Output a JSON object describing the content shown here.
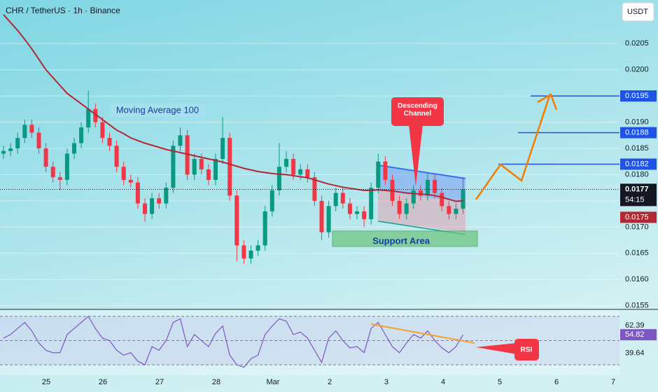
{
  "header": {
    "symbol": "CHR / TetherUS · 1h · Binance",
    "currency": "USDT",
    "countdown": "54:15"
  },
  "chart_data": [
    {
      "type": "candlestick",
      "up_color": "#089981",
      "down_color": "#f23645",
      "open": [
        0.0184,
        0.01845,
        0.0185,
        0.0187,
        0.01895,
        0.0188,
        0.0185,
        0.01815,
        0.01795,
        0.0179,
        0.0184,
        0.0186,
        0.0189,
        0.01925,
        0.019,
        0.0187,
        0.01855,
        0.01815,
        0.0179,
        0.01785,
        0.01745,
        0.01725,
        0.01755,
        0.01745,
        0.01775,
        0.01855,
        0.01875,
        0.018,
        0.0183,
        0.0181,
        0.0179,
        0.0183,
        0.0187,
        0.0176,
        0.01665,
        0.0164,
        0.01655,
        0.01665,
        0.0173,
        0.0177,
        0.01815,
        0.0183,
        0.018,
        0.0181,
        0.01795,
        0.0175,
        0.0169,
        0.0174,
        0.01765,
        0.01745,
        0.01725,
        0.0173,
        0.01715,
        0.01775,
        0.01825,
        0.0179,
        0.0175,
        0.01725,
        0.01745,
        0.0177,
        0.0176,
        0.0179,
        0.01765,
        0.0174,
        0.01725,
        0.01735
      ],
      "high": [
        0.01855,
        0.0186,
        0.0188,
        0.01905,
        0.01905,
        0.0189,
        0.0186,
        0.01825,
        0.01805,
        0.0185,
        0.0187,
        0.019,
        0.0196,
        0.01935,
        0.0191,
        0.0188,
        0.01865,
        0.01825,
        0.018,
        0.01795,
        0.01755,
        0.01765,
        0.01765,
        0.01785,
        0.01865,
        0.0189,
        0.01885,
        0.0184,
        0.0184,
        0.0182,
        0.0184,
        0.0191,
        0.0188,
        0.0177,
        0.01675,
        0.01665,
        0.01675,
        0.0174,
        0.0178,
        0.0186,
        0.01845,
        0.0184,
        0.0182,
        0.0182,
        0.01805,
        0.0176,
        0.0175,
        0.01775,
        0.01775,
        0.01755,
        0.0174,
        0.0174,
        0.01785,
        0.0184,
        0.01835,
        0.018,
        0.0176,
        0.01755,
        0.0178,
        0.0178,
        0.01805,
        0.018,
        0.01775,
        0.0175,
        0.01745,
        0.01795
      ],
      "low": [
        0.0183,
        0.01835,
        0.0184,
        0.0186,
        0.0187,
        0.0184,
        0.01805,
        0.01785,
        0.0177,
        0.0178,
        0.0183,
        0.0185,
        0.0188,
        0.0189,
        0.0186,
        0.01845,
        0.01805,
        0.0178,
        0.01775,
        0.01735,
        0.0171,
        0.01715,
        0.01735,
        0.01735,
        0.01765,
        0.01845,
        0.0179,
        0.0179,
        0.018,
        0.0178,
        0.0178,
        0.0182,
        0.0175,
        0.01635,
        0.0163,
        0.0163,
        0.01645,
        0.01655,
        0.0172,
        0.0176,
        0.01805,
        0.0179,
        0.0179,
        0.01785,
        0.0174,
        0.01675,
        0.0168,
        0.0173,
        0.01735,
        0.01715,
        0.01715,
        0.017,
        0.01705,
        0.01765,
        0.0178,
        0.0174,
        0.01715,
        0.01715,
        0.01735,
        0.0175,
        0.0175,
        0.01755,
        0.0173,
        0.01715,
        0.01715,
        0.01725
      ],
      "close": [
        0.01845,
        0.0185,
        0.0187,
        0.01895,
        0.0188,
        0.0185,
        0.01815,
        0.01795,
        0.0179,
        0.0184,
        0.0186,
        0.0189,
        0.01925,
        0.019,
        0.0187,
        0.01855,
        0.01815,
        0.0179,
        0.01785,
        0.01745,
        0.01725,
        0.01755,
        0.01745,
        0.01775,
        0.01855,
        0.01875,
        0.018,
        0.0183,
        0.0181,
        0.0179,
        0.0183,
        0.0187,
        0.0176,
        0.01665,
        0.0164,
        0.01655,
        0.01665,
        0.0173,
        0.0177,
        0.01815,
        0.0183,
        0.018,
        0.0181,
        0.01795,
        0.0175,
        0.0169,
        0.0174,
        0.01765,
        0.01745,
        0.01725,
        0.0173,
        0.01715,
        0.01775,
        0.01825,
        0.0179,
        0.0175,
        0.01725,
        0.01745,
        0.0177,
        0.0176,
        0.0179,
        0.01765,
        0.0174,
        0.01725,
        0.01735,
        0.01772
      ],
      "series": [
        {
          "name": "Moving Average 100",
          "color": "#b22833",
          "values": [
            0.02105,
            0.0209,
            0.02075,
            0.02058,
            0.0204,
            0.0202,
            0.02,
            0.01985,
            0.0197,
            0.01955,
            0.01945,
            0.01935,
            0.01925,
            0.01915,
            0.01905,
            0.01895,
            0.01885,
            0.01878,
            0.0187,
            0.01865,
            0.0186,
            0.01856,
            0.01852,
            0.01848,
            0.01845,
            0.01842,
            0.01839,
            0.01836,
            0.01833,
            0.0183,
            0.01827,
            0.01824,
            0.0182,
            0.01816,
            0.01812,
            0.01809,
            0.01806,
            0.01804,
            0.01802,
            0.01801,
            0.018,
            0.01798,
            0.01796,
            0.01794,
            0.0179,
            0.01786,
            0.01782,
            0.01779,
            0.01776,
            0.01774,
            0.01772,
            0.0177,
            0.0177,
            0.01771,
            0.0177,
            0.01769,
            0.01767,
            0.01765,
            0.01764,
            0.01763,
            0.01762,
            0.0176,
            0.01757,
            0.01753,
            0.01749,
            0.0175
          ],
          "value_label": "0.0175"
        }
      ],
      "last_label": "0.0177",
      "ylim": [
        0.01543,
        0.02133
      ],
      "yticks": [
        {
          "value": 0.0155,
          "label": "0.0155"
        },
        {
          "value": 0.016,
          "label": "0.0160"
        },
        {
          "value": 0.0165,
          "label": "0.0165"
        },
        {
          "value": 0.017,
          "label": "0.0170"
        },
        {
          "value": 0.0175,
          "label": "0.0175"
        },
        {
          "value": 0.018,
          "label": "0.0180"
        },
        {
          "value": 0.0185,
          "label": "0.0185"
        },
        {
          "value": 0.019,
          "label": "0.0190"
        },
        {
          "value": 0.0195,
          "label": "0.0195"
        },
        {
          "value": 0.02,
          "label": "0.0200"
        },
        {
          "value": 0.0205,
          "label": "0.0205"
        }
      ],
      "targets": [
        {
          "value": 0.0195,
          "label": "0.0195"
        },
        {
          "value": 0.0188,
          "label": "0.0188"
        },
        {
          "value": 0.0182,
          "label": "0.0182"
        }
      ],
      "target_color": "#1e53e5",
      "annotations": {
        "channel": "Descending Channel",
        "support": "Support Area"
      },
      "x_labels": [
        "25",
        "26",
        "27",
        "28",
        "Mar",
        "2",
        "3",
        "4",
        "5",
        "6",
        "7"
      ],
      "grid": true
    },
    {
      "type": "line",
      "series": [
        {
          "name": "RSI",
          "color": "#7e57c2",
          "values": [
            52,
            55,
            60,
            65,
            58,
            48,
            42,
            40,
            40,
            55,
            60,
            65,
            70,
            60,
            52,
            50,
            42,
            38,
            40,
            33,
            30,
            45,
            42,
            50,
            65,
            68,
            45,
            55,
            50,
            45,
            56,
            62,
            38,
            30,
            28,
            35,
            38,
            55,
            62,
            68,
            66,
            55,
            57,
            52,
            42,
            32,
            52,
            58,
            50,
            44,
            45,
            40,
            60,
            65,
            55,
            45,
            40,
            48,
            55,
            52,
            58,
            50,
            44,
            40,
            45,
            54.82
          ]
        }
      ],
      "ylim": [
        22,
        74
      ],
      "levels": [
        70,
        50,
        30
      ],
      "yticks": [
        62.39,
        39.64
      ]
    }
  ]
}
